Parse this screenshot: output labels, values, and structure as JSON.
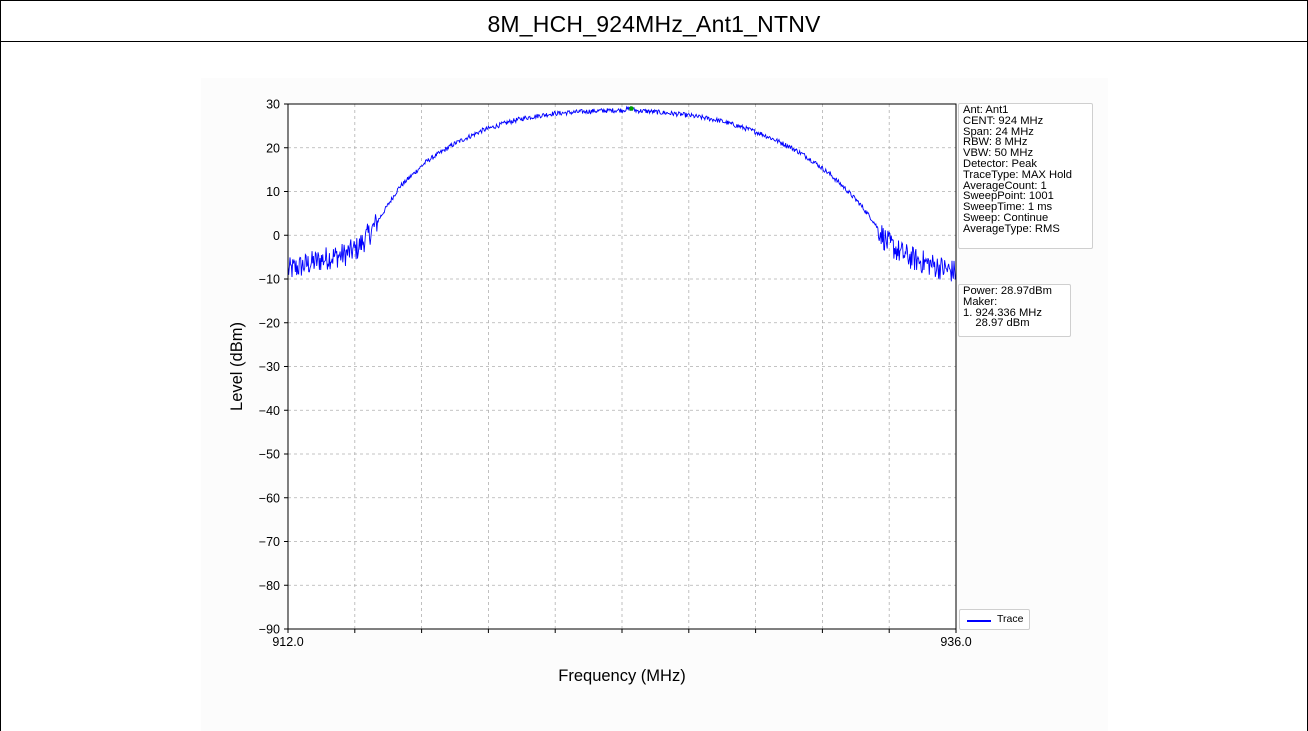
{
  "page_title": "8M_HCH_924MHz_Ant1_NTNV",
  "settings_lines": [
    "Ant: Ant1",
    "CENT: 924 MHz",
    "Span: 24 MHz",
    "RBW: 8 MHz",
    "VBW: 50 MHz",
    "Detector: Peak",
    "TraceType: MAX Hold",
    "AverageCount: 1",
    "SweepPoint: 1001",
    "SweepTime: 1 ms",
    "Sweep: Continue",
    "AverageType: RMS"
  ],
  "marker_lines": [
    "Power: 28.97dBm",
    "Maker:",
    "1. 924.336 MHz",
    "    28.97 dBm"
  ],
  "chart_data": {
    "type": "line",
    "xlabel": "Frequency (MHz)",
    "ylabel": "Level (dBm)",
    "xlim": [
      912.0,
      936.0
    ],
    "ylim": [
      -90,
      30
    ],
    "x_tick_labels": [
      "912.0",
      "936.0"
    ],
    "x_minor_ticks": [
      912.0,
      914.4,
      916.8,
      919.2,
      921.6,
      924.0,
      926.4,
      928.8,
      931.2,
      933.6,
      936.0
    ],
    "y_ticks": [
      30,
      20,
      10,
      0,
      -10,
      -20,
      -30,
      -40,
      -50,
      -60,
      -70,
      -80,
      -90
    ],
    "grid": true,
    "legend": "lower-right outside",
    "series": [
      {
        "name": "Trace",
        "color": "#0000ff",
        "x": [
          912.0,
          912.5,
          913.0,
          913.5,
          914.0,
          914.5,
          915.0,
          915.5,
          916.0,
          916.5,
          917.0,
          917.5,
          918.0,
          918.5,
          919.0,
          919.5,
          920.0,
          920.5,
          921.0,
          921.5,
          922.0,
          922.5,
          923.0,
          923.5,
          924.0,
          924.336,
          924.5,
          925.0,
          925.5,
          926.0,
          926.5,
          927.0,
          927.5,
          928.0,
          928.5,
          929.0,
          929.5,
          930.0,
          930.5,
          931.0,
          931.5,
          932.0,
          932.5,
          933.0,
          933.5,
          934.0,
          934.5,
          935.0,
          935.5,
          936.0
        ],
        "values": [
          -8,
          -7,
          -6,
          -5,
          -4.5,
          -3,
          1,
          6,
          11,
          14,
          17,
          19,
          21,
          22.5,
          24,
          25,
          26,
          26.8,
          27.3,
          27.8,
          28.0,
          28.2,
          28.4,
          28.5,
          28.6,
          28.97,
          28.5,
          28.3,
          28.0,
          27.7,
          27.3,
          26.8,
          26.2,
          25.3,
          24.3,
          23.2,
          21.8,
          20.3,
          18.5,
          16.3,
          13.8,
          10.8,
          7.5,
          3.5,
          -1.5,
          -4,
          -5.5,
          -6.5,
          -7.5,
          -8.5
        ]
      }
    ],
    "marker": {
      "x": 924.336,
      "y": 28.97,
      "color": "#00a000"
    }
  }
}
